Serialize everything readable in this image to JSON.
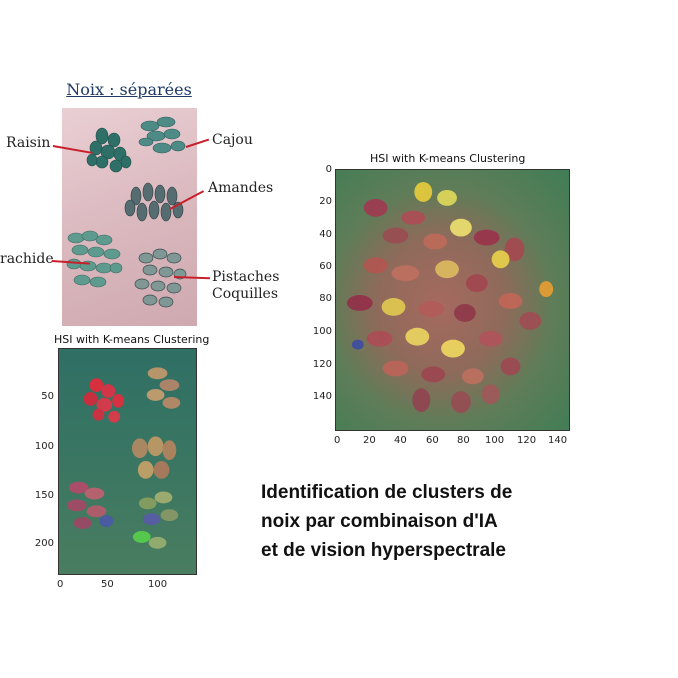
{
  "photo": {
    "title": "Noix : séparées",
    "labels": {
      "raisin": "Raisin",
      "cajou": "Cajou",
      "amandes": "Amandes",
      "arachide": "rachide",
      "pistaches_1": "Pistaches",
      "pistaches_2": "Coquilles"
    }
  },
  "plot_large": {
    "title": "HSI with K-means Clustering",
    "y_ticks": [
      "0",
      "20",
      "40",
      "60",
      "80",
      "100",
      "120",
      "140"
    ],
    "x_ticks": [
      "0",
      "20",
      "40",
      "60",
      "80",
      "100",
      "120",
      "140"
    ]
  },
  "plot_small": {
    "title": "HSI with K-means Clustering",
    "y_ticks": [
      "50",
      "100",
      "150",
      "200"
    ],
    "x_ticks": [
      "0",
      "50",
      "100"
    ]
  },
  "caption": {
    "line1": "Identification de clusters de",
    "line2": "noix par combinaison d'IA",
    "line3": "et de vision hyperspectrale"
  },
  "colors": {
    "nut_teal": "#2f7a70",
    "leader_red": "#c8202a",
    "title_blue": "#1f3a66"
  }
}
